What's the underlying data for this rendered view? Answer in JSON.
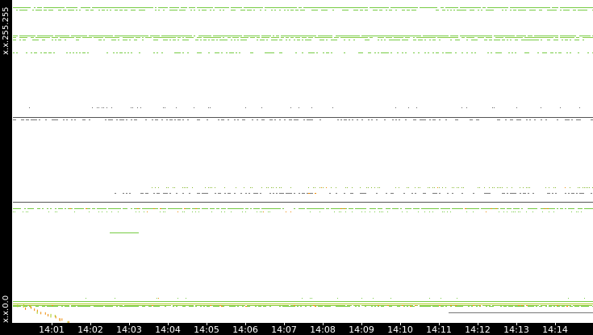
{
  "chart_data": {
    "type": "scatter",
    "title": "",
    "xlabel": "",
    "ylabel": "",
    "y_tick_labels": {
      "top": "x.x.255.255",
      "bottom": "x.x.0.0"
    },
    "y_range": [
      0,
      65535
    ],
    "x_tick_labels": [
      "14:01",
      "14:02",
      "14:03",
      "14:04",
      "14:05",
      "14:06",
      "14:07",
      "14:08",
      "14:09",
      "14:10",
      "14:11",
      "14:12",
      "14:13",
      "14:14"
    ],
    "x_range": [
      "14:00:00",
      "14:15:00"
    ],
    "grid": false,
    "colors": {
      "low": "#77cc44",
      "mid": "#aacc22",
      "high": "#ee8800",
      "alert": "#dd0000",
      "line": "#555555"
    },
    "bands": [
      {
        "address": 64060,
        "from": "14:00:00",
        "to": "14:15:00",
        "density": 0.9,
        "color": "#77cc44"
      },
      {
        "address": 63570,
        "from": "14:00:00",
        "to": "14:15:00",
        "density": 0.5,
        "color": "#77cc44"
      },
      {
        "address": 58400,
        "from": "14:00:00",
        "to": "14:15:00",
        "density": 0.9,
        "color": "#77cc44"
      },
      {
        "address": 58050,
        "from": "14:00:00",
        "to": "14:15:00",
        "density": 0.8,
        "color": "#88cc44"
      },
      {
        "address": 57500,
        "from": "14:00:00",
        "to": "14:15:00",
        "density": 0.5,
        "color": "#77cc44"
      },
      {
        "address": 54900,
        "from": "14:00:00",
        "to": "14:15:00",
        "density": 0.4,
        "color": "#77cc44"
      },
      {
        "address": 43750,
        "from": "14:00:00",
        "to": "14:15:00",
        "density": 0.08,
        "color": "#666666"
      },
      {
        "address": 41770,
        "from": "14:00:00",
        "to": "14:15:00",
        "density": 1.0,
        "color": "#555555"
      },
      {
        "address": 41300,
        "from": "14:00:00",
        "to": "14:15:00",
        "density": 0.35,
        "color": "#777777"
      },
      {
        "address": 27530,
        "from": "14:03:30",
        "to": "14:15:00",
        "density": 0.3,
        "color": "#88bb33"
      },
      {
        "address": 26400,
        "from": "14:02:30",
        "to": "14:15:00",
        "density": 0.35,
        "color": "#777777"
      },
      {
        "address": 24580,
        "from": "14:00:00",
        "to": "14:15:00",
        "density": 1.0,
        "color": "#555555"
      },
      {
        "address": 23270,
        "from": "14:00:00",
        "to": "14:15:00",
        "density": 0.8,
        "color": "#77cc44"
      },
      {
        "address": 22600,
        "from": "14:00:00",
        "to": "14:15:00",
        "density": 0.25,
        "color": "#77cc44"
      },
      {
        "address": 18350,
        "from": "14:02:30",
        "to": "14:03:15",
        "density": 0.9,
        "color": "#77cc44"
      },
      {
        "address": 5080,
        "from": "14:00:00",
        "to": "14:15:00",
        "density": 0.06,
        "color": "#77cc44"
      },
      {
        "address": 4400,
        "from": "14:00:00",
        "to": "14:15:00",
        "density": 1.0,
        "color": "#77cc44"
      },
      {
        "address": 4000,
        "from": "14:00:00",
        "to": "14:15:00",
        "density": 1.0,
        "color": "#aacc22"
      },
      {
        "address": 3600,
        "from": "14:00:00",
        "to": "14:15:00",
        "density": 0.95,
        "color": "#88cc33"
      },
      {
        "address": 3440,
        "from": "14:00:00",
        "to": "14:15:00",
        "density": 0.6,
        "color": "#77cc44"
      },
      {
        "address": 2130,
        "from": "14:11:15",
        "to": "14:15:00",
        "density": 1.0,
        "color": "#777777"
      }
    ],
    "burst": {
      "from": "14:00:10",
      "to": "14:01:30",
      "address_from": 4000,
      "address_to": 200,
      "color": "#ee8800"
    }
  }
}
